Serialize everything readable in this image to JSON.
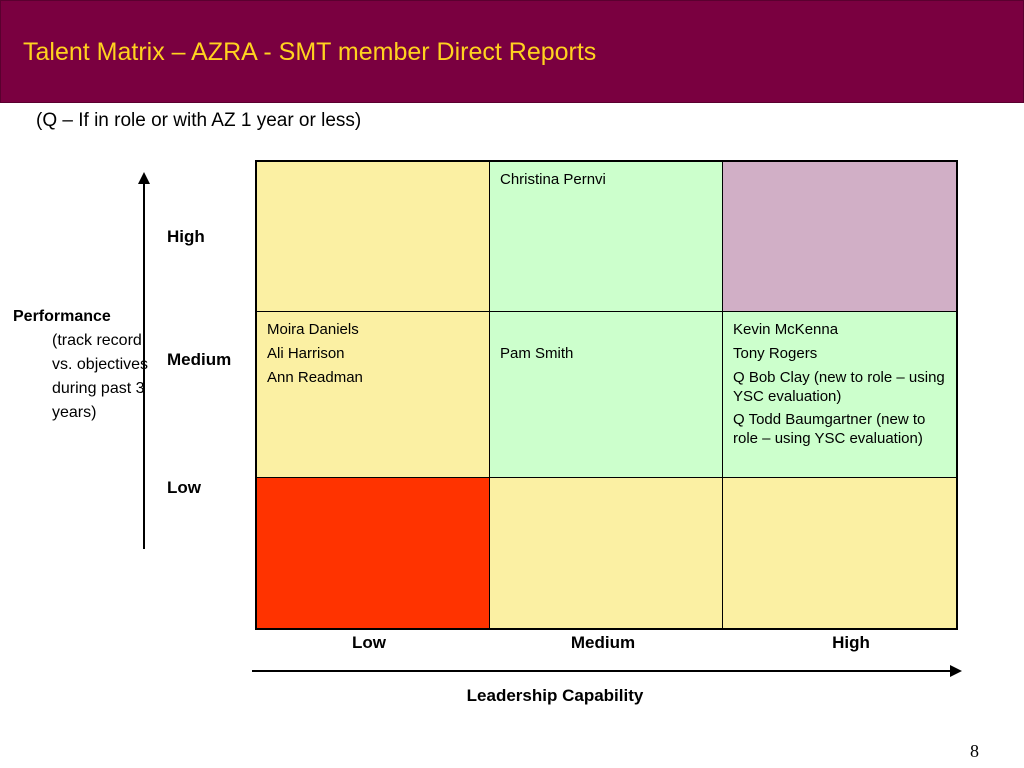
{
  "header": {
    "title": "Talent Matrix – AZRA - SMT member Direct Reports",
    "subtitle": "(Q – If in role or with AZ 1 year or less)"
  },
  "y_axis": {
    "title": "Performance",
    "description": "(track record vs. objectives during past 3 years)",
    "levels": [
      "High",
      "Medium",
      "Low"
    ]
  },
  "x_axis": {
    "title": "Leadership Capability",
    "levels": [
      "Low",
      "Medium",
      "High"
    ]
  },
  "colors": {
    "header_bg": "#7a0040",
    "title_text": "#ffd21f",
    "yellow": "#fbf0a3",
    "green": "#ccffcc",
    "mauve": "#d1afc6",
    "red": "#ff3300"
  },
  "matrix": {
    "cells": [
      {
        "performance": "High",
        "leadership": "Low",
        "color": "#fbf0a3",
        "names": []
      },
      {
        "performance": "High",
        "leadership": "Medium",
        "color": "#ccffcc",
        "names": [
          "Christina Pernvi"
        ]
      },
      {
        "performance": "High",
        "leadership": "High",
        "color": "#d1afc6",
        "names": []
      },
      {
        "performance": "Medium",
        "leadership": "Low",
        "color": "#fbf0a3",
        "names": [
          "Moira Daniels",
          "Ali Harrison",
          "Ann Readman"
        ]
      },
      {
        "performance": "Medium",
        "leadership": "Medium",
        "color": "#ccffcc",
        "names": [
          "Pam Smith"
        ]
      },
      {
        "performance": "Medium",
        "leadership": "High",
        "color": "#ccffcc",
        "names": [
          "Kevin McKenna",
          "Tony Rogers",
          "Q Bob Clay (new to role – using YSC evaluation)",
          "Q Todd Baumgartner (new to role – using YSC evaluation)"
        ]
      },
      {
        "performance": "Low",
        "leadership": "Low",
        "color": "#ff3300",
        "names": []
      },
      {
        "performance": "Low",
        "leadership": "Medium",
        "color": "#fbf0a3",
        "names": []
      },
      {
        "performance": "Low",
        "leadership": "High",
        "color": "#fbf0a3",
        "names": []
      }
    ]
  },
  "footer": {
    "page_number": "8"
  }
}
